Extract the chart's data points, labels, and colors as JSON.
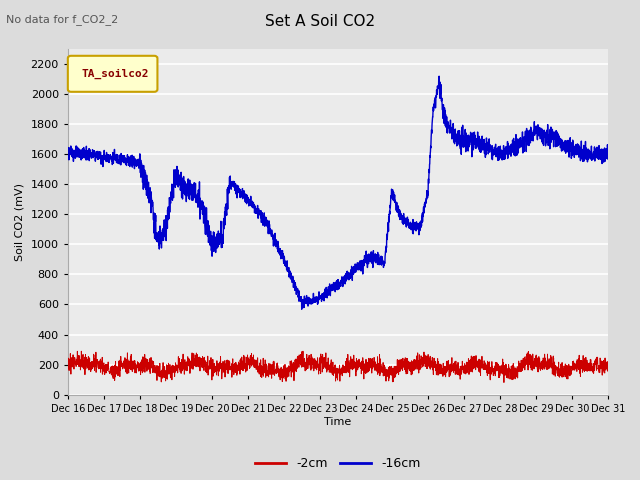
{
  "title": "Set A Soil CO2",
  "subtitle": "No data for f_CO2_2",
  "ylabel": "Soil CO2 (mV)",
  "xlabel": "Time",
  "ylim": [
    0,
    2300
  ],
  "background_color": "#dcdcdc",
  "plot_bg_color": "#ebebeb",
  "grid_color": "#ffffff",
  "legend_label": "TA_soilco2",
  "legend_border_color": "#c8a000",
  "legend_bg_color": "#ffffcc",
  "legend_text_color": "#880000",
  "x_tick_labels": [
    "Dec 16",
    "Dec 17",
    "Dec 18",
    "Dec 19",
    "Dec 20",
    "Dec 21",
    "Dec 22",
    "Dec 23",
    "Dec 24",
    "Dec 25",
    "Dec 26",
    "Dec 27",
    "Dec 28",
    "Dec 29",
    "Dec 30",
    "Dec 31"
  ],
  "red_color": "#cc0000",
  "blue_color": "#0000cc",
  "yticks": [
    0,
    200,
    400,
    600,
    800,
    1000,
    1200,
    1400,
    1600,
    1800,
    2000,
    2200
  ]
}
